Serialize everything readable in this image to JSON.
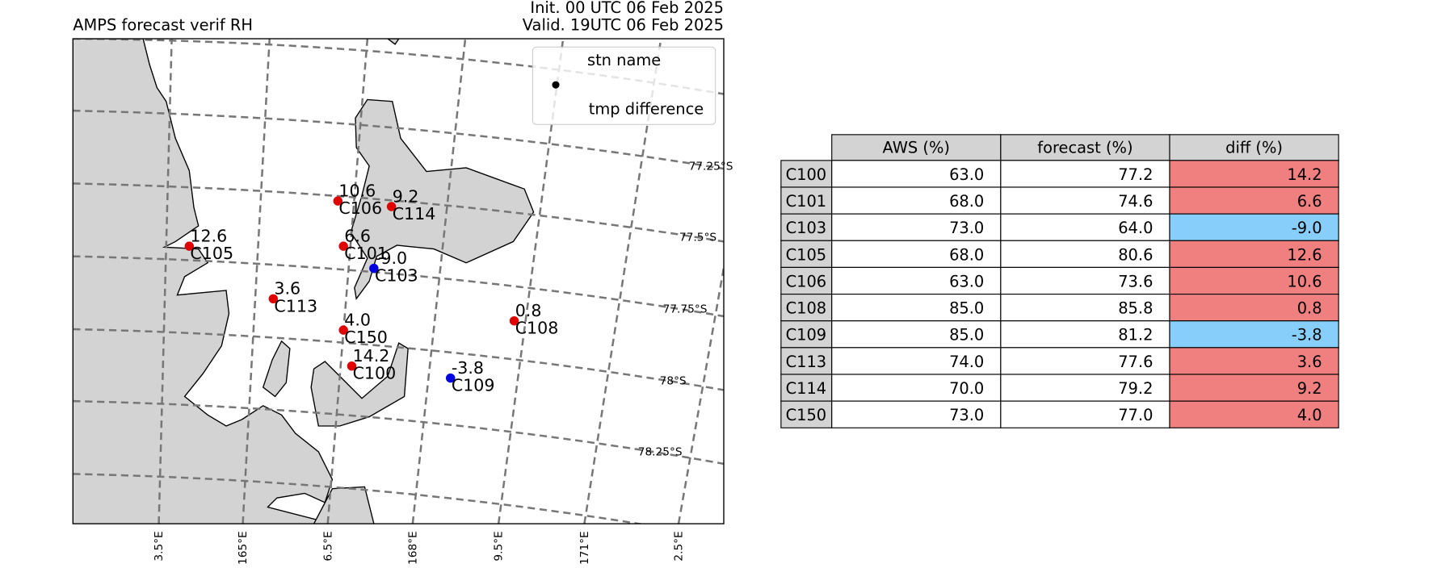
{
  "header": {
    "title": "AMPS forecast verif RH",
    "init": "Init. 00 UTC 06 Feb 2025",
    "valid": "Valid. 19UTC 06 Feb 2025"
  },
  "legend": {
    "name_label": "stn name",
    "value_label": "tmp difference"
  },
  "map": {
    "lat_labels": [
      "77.25°S",
      "77.5°S",
      "77.75°S",
      "78°S",
      "78.25°S"
    ],
    "lon_labels": [
      "3.5°E",
      "165°E",
      "6.5°E",
      "168°E",
      "9.5°E",
      "171°E",
      "2.5°E"
    ],
    "positive_color": "#e00000",
    "negative_color": "#0000e0"
  },
  "table": {
    "columns": [
      "AWS (%)",
      "forecast (%)",
      "diff (%)"
    ],
    "positive_color": "#f08080",
    "negative_color": "#87cefa",
    "rows": [
      [
        "C100",
        "63.0",
        "77.2",
        "14.2"
      ],
      [
        "C101",
        "68.0",
        "74.6",
        "6.6"
      ],
      [
        "C103",
        "73.0",
        "64.0",
        "-9.0"
      ],
      [
        "C105",
        "68.0",
        "80.6",
        "12.6"
      ],
      [
        "C106",
        "63.0",
        "73.6",
        "10.6"
      ],
      [
        "C108",
        "85.0",
        "85.8",
        "0.8"
      ],
      [
        "C109",
        "85.0",
        "81.2",
        "-3.8"
      ],
      [
        "C113",
        "74.0",
        "77.6",
        "3.6"
      ],
      [
        "C114",
        "70.0",
        "79.2",
        "9.2"
      ],
      [
        "C150",
        "73.0",
        "77.0",
        "4.0"
      ]
    ]
  }
}
